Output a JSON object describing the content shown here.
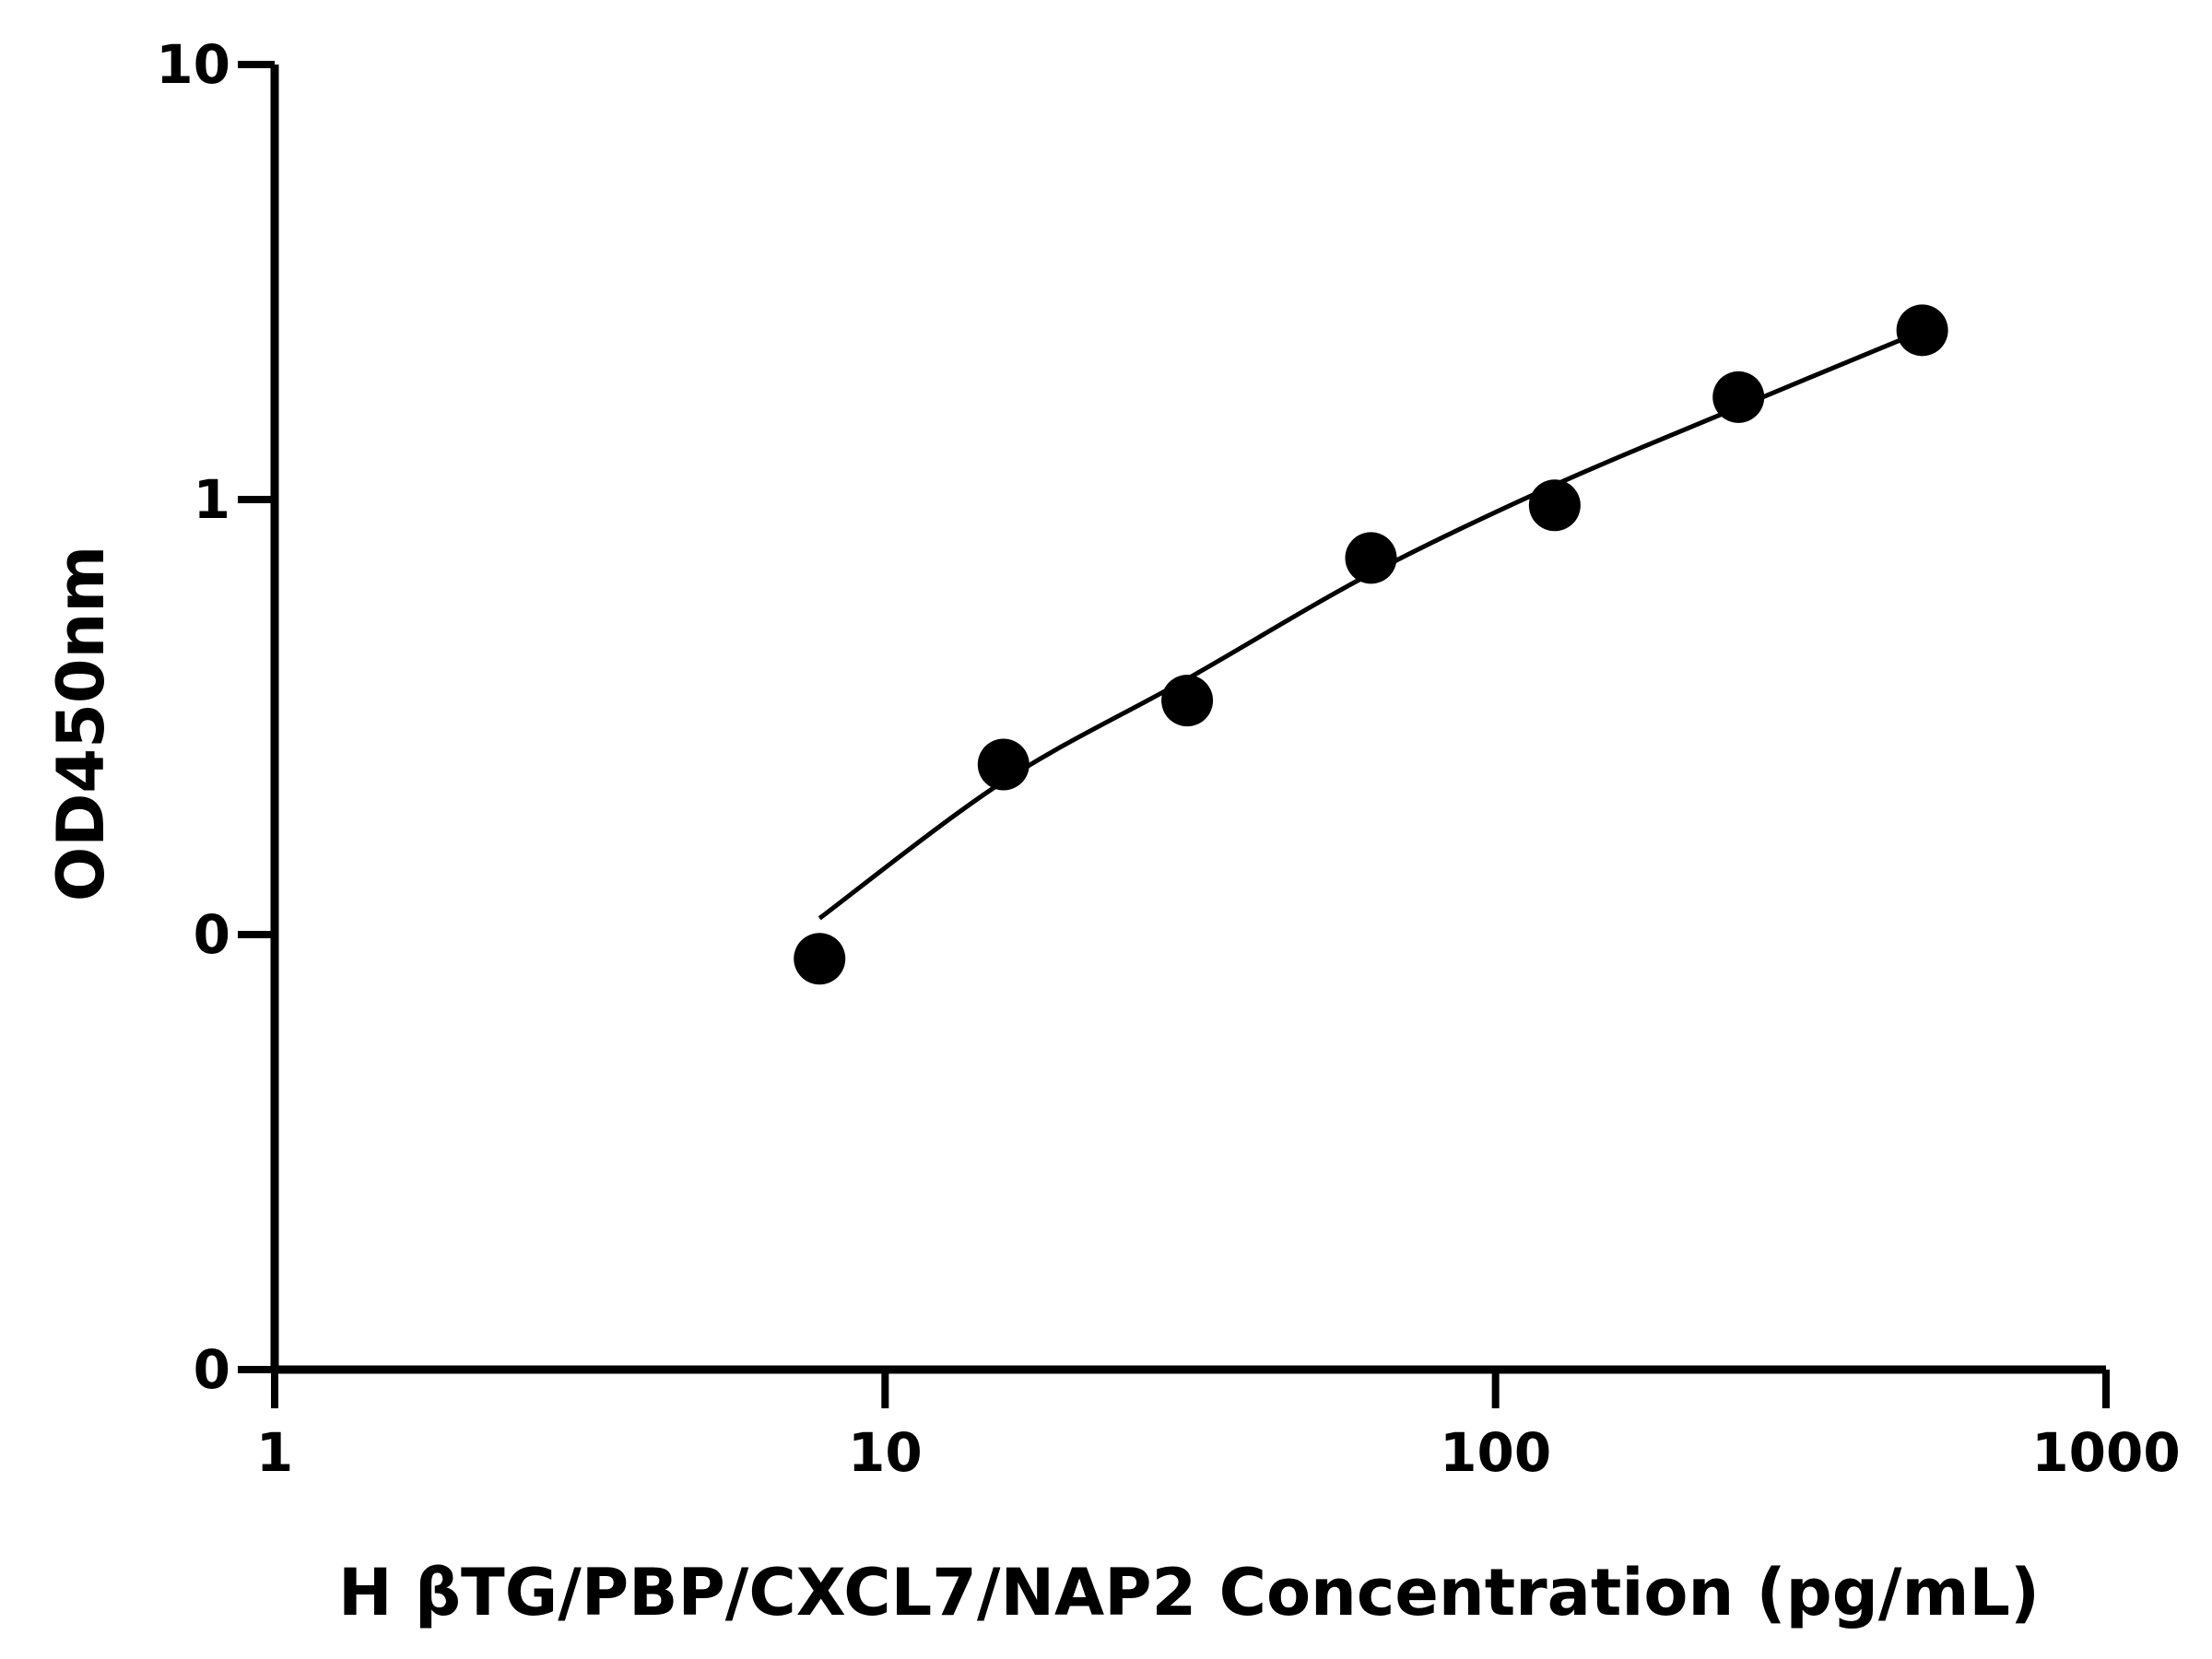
{
  "chart_data": {
    "type": "scatter",
    "x_label": "H βTG/PBP/CXCL7/NAP2 Concentration (pg/mL)",
    "y_label": "OD450nm",
    "x": [
      7.81,
      15.63,
      31.25,
      62.5,
      125,
      250,
      500
    ],
    "series": [
      {
        "mode": "markers",
        "color": "#000000",
        "values": [
          0.088,
          0.246,
          0.345,
          0.734,
          0.97,
          1.72,
          2.45
        ]
      },
      {
        "mode": "line",
        "color": "#000000",
        "values": [
          0.109,
          0.225,
          0.387,
          0.676,
          1.08,
          1.63,
          2.44
        ]
      }
    ],
    "xscale": "log",
    "yscale": "log",
    "xlim": [
      1,
      1000
    ],
    "ylim": [
      0.01,
      10
    ],
    "xticks": [
      1,
      10,
      100,
      1000
    ],
    "yticks": [
      {
        "value": 0.01,
        "label": "0"
      },
      {
        "value": 0.1,
        "label": "0"
      },
      1,
      10
    ]
  }
}
